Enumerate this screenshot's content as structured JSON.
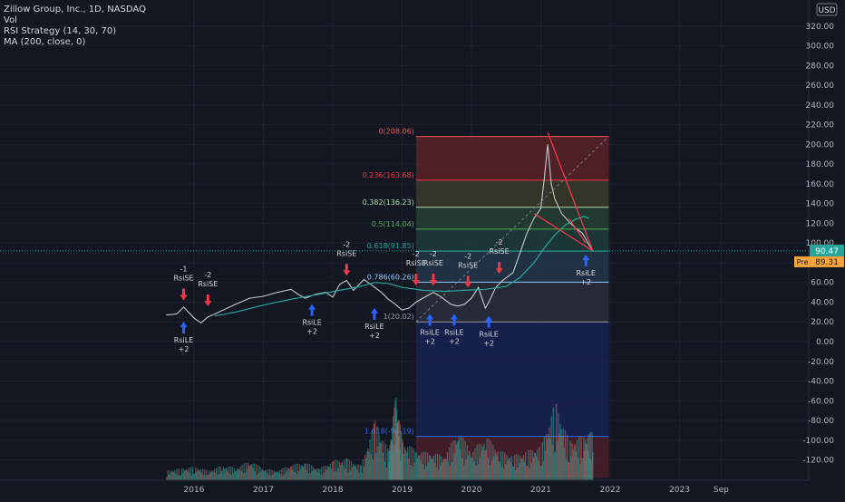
{
  "legend": {
    "symbol_line": "Zillow Group, Inc., 1D, NASDAQ",
    "indicators": [
      "Vol",
      "RSI Strategy (14, 30, 70)",
      "MA (200, close, 0)"
    ]
  },
  "currency_label": "USD",
  "price_tag": "90.47",
  "pre_tag_label": "Pre",
  "pre_tag_value": "89.31",
  "colors": {
    "background": "#131722",
    "price_line": "#c4c7ce",
    "ma_line": "#26a69a",
    "up": "#26a69a",
    "down": "#ef5350",
    "trendline": "#f23645",
    "buy_arrow": "#2962ff",
    "sell_arrow": "#f23645",
    "price_tag_bg": "#26a69a",
    "pre_tag_bg": "#f7a33a"
  },
  "chart_data": {
    "type": "line",
    "title": "Zillow Group, Inc., 1D, NASDAQ",
    "x_axis_ticks": [
      "2016",
      "2017",
      "2018",
      "2019",
      "2020",
      "2021",
      "2022",
      "2023",
      "Sep"
    ],
    "y_axis_ticks": [
      320,
      300,
      280,
      260,
      240,
      220,
      200,
      180,
      160,
      140,
      120,
      100,
      80,
      60,
      40,
      20,
      0,
      -20,
      -40,
      -60,
      -80,
      -100,
      -120
    ],
    "ylim": [
      -138,
      342
    ],
    "price_series": {
      "name": "ZG close",
      "x": [
        2015.6,
        2015.75,
        2015.85,
        2016.0,
        2016.1,
        2016.2,
        2016.3,
        2016.45,
        2016.6,
        2016.8,
        2017.0,
        2017.2,
        2017.4,
        2017.5,
        2017.6,
        2017.75,
        2017.9,
        2018.0,
        2018.1,
        2018.2,
        2018.3,
        2018.45,
        2018.55,
        2018.7,
        2018.8,
        2018.9,
        2019.0,
        2019.1,
        2019.2,
        2019.3,
        2019.45,
        2019.55,
        2019.7,
        2019.8,
        2019.9,
        2020.0,
        2020.1,
        2020.2,
        2020.25,
        2020.35,
        2020.45,
        2020.6,
        2020.7,
        2020.8,
        2020.9,
        2021.0,
        2021.05,
        2021.1,
        2021.15,
        2021.2,
        2021.3,
        2021.4,
        2021.5,
        2021.6,
        2021.68,
        2021.75
      ],
      "y": [
        27,
        28,
        35,
        24,
        19,
        25,
        28,
        33,
        38,
        44,
        46,
        50,
        53,
        48,
        44,
        48,
        50,
        45,
        58,
        62,
        52,
        63,
        58,
        50,
        43,
        38,
        32,
        34,
        40,
        44,
        50,
        46,
        38,
        36,
        38,
        44,
        55,
        34,
        40,
        55,
        62,
        70,
        90,
        110,
        125,
        135,
        165,
        200,
        160,
        145,
        130,
        122,
        115,
        110,
        100,
        92
      ]
    },
    "ma_series": {
      "name": "MA (200, close, 0)",
      "x": [
        2016.3,
        2016.6,
        2017.0,
        2017.4,
        2017.8,
        2018.1,
        2018.4,
        2018.6,
        2018.8,
        2019.0,
        2019.3,
        2019.6,
        2019.9,
        2020.2,
        2020.5,
        2020.7,
        2020.9,
        2021.05,
        2021.2,
        2021.35,
        2021.5,
        2021.62,
        2021.7
      ],
      "y": [
        26,
        30,
        37,
        43,
        48,
        52,
        56,
        60,
        59,
        55,
        52,
        51,
        52,
        53,
        56,
        65,
        80,
        95,
        108,
        118,
        124,
        127,
        125
      ]
    },
    "fibonacci": {
      "x_start": 2019.2,
      "x_end": 2021.98,
      "levels": [
        {
          "ratio": "0",
          "price": 208.06,
          "label": "0(208.06)",
          "color": "#ef5350",
          "zone": "#5a2226"
        },
        {
          "ratio": "0.236",
          "price": 163.68,
          "label": "0.236(163.68)",
          "color": "#f23645",
          "zone": "#3b3a2a"
        },
        {
          "ratio": "0.382",
          "price": 136.23,
          "label": "0.382(136.23)",
          "color": "#a5d6a7",
          "zone": "#244031"
        },
        {
          "ratio": "0.5",
          "price": 114.04,
          "label": "0.5(114.04)",
          "color": "#4caf50",
          "zone": "#1f3b3a"
        },
        {
          "ratio": "0.618",
          "price": 91.85,
          "label": "0.618(91.85)",
          "color": "#26a69a",
          "zone": "#24364a"
        },
        {
          "ratio": "0.786",
          "price": 60.26,
          "label": "0.786(60.26)",
          "color": "#90caf9",
          "zone": "#2a2e39"
        },
        {
          "ratio": "1",
          "price": 20.02,
          "label": "1(20.02)",
          "color": "#9598a1",
          "zone": "#172352"
        },
        {
          "ratio": "1.618",
          "price": -96.19,
          "label": "1.618(-96.19)",
          "color": "#2962ff",
          "zone": "#4a1f2a"
        }
      ],
      "zone_floor": -138
    },
    "trendlines": [
      {
        "from": [
          2021.1,
          212
        ],
        "to": [
          2021.75,
          92
        ]
      },
      {
        "from": [
          2020.9,
          130
        ],
        "to": [
          2021.75,
          92
        ]
      },
      {
        "from": [
          2021.4,
          125
        ],
        "to": [
          2021.65,
          100
        ]
      }
    ],
    "diagonal": {
      "from": [
        2019.2,
        20.02
      ],
      "to": [
        2021.98,
        208.06
      ]
    },
    "signals": [
      {
        "type": "sell",
        "x": 2015.85,
        "price": 40,
        "labels": [
          "-1",
          "RsiSE"
        ]
      },
      {
        "type": "sell",
        "x": 2016.2,
        "price": 34,
        "labels": [
          "-2",
          "RsiSE"
        ]
      },
      {
        "type": "buy",
        "x": 2015.85,
        "price": 22,
        "labels": [
          "RsiLE",
          "+2"
        ]
      },
      {
        "type": "buy",
        "x": 2017.7,
        "price": 40,
        "labels": [
          "RsiLE",
          "+2"
        ]
      },
      {
        "type": "sell",
        "x": 2018.2,
        "price": 65,
        "labels": [
          "-2",
          "RsiSE"
        ]
      },
      {
        "type": "buy",
        "x": 2018.6,
        "price": 36,
        "labels": [
          "RsiLE",
          "+2"
        ]
      },
      {
        "type": "sell",
        "x": 2019.2,
        "price": 55,
        "labels": [
          "-2",
          "RsiSE"
        ]
      },
      {
        "type": "sell",
        "x": 2019.45,
        "price": 55,
        "labels": [
          "-2",
          "RsiSE"
        ]
      },
      {
        "type": "buy",
        "x": 2019.4,
        "price": 30,
        "labels": [
          "RsiLE",
          "+2"
        ]
      },
      {
        "type": "buy",
        "x": 2019.75,
        "price": 30,
        "labels": [
          "RsiLE",
          "+2"
        ]
      },
      {
        "type": "sell",
        "x": 2019.95,
        "price": 53,
        "labels": [
          "-2",
          "RsiSE"
        ]
      },
      {
        "type": "buy",
        "x": 2020.25,
        "price": 28,
        "labels": [
          "RsiLE",
          "+2"
        ]
      },
      {
        "type": "sell",
        "x": 2020.4,
        "price": 67,
        "labels": [
          "-2",
          "RsiSE"
        ]
      },
      {
        "type": "buy",
        "x": 2021.65,
        "price": 90,
        "labels": [
          "RsiLE",
          "+2"
        ]
      }
    ],
    "volume": {
      "x": [
        2015.6,
        2015.8,
        2016.0,
        2016.2,
        2016.4,
        2016.6,
        2016.8,
        2017.0,
        2017.2,
        2017.4,
        2017.6,
        2017.8,
        2018.0,
        2018.2,
        2018.4,
        2018.6,
        2018.8,
        2018.9,
        2019.0,
        2019.2,
        2019.4,
        2019.6,
        2019.8,
        2020.0,
        2020.2,
        2020.4,
        2020.6,
        2020.8,
        2021.0,
        2021.2,
        2021.4,
        2021.6,
        2021.75
      ],
      "relative": [
        0.1,
        0.12,
        0.14,
        0.1,
        0.15,
        0.13,
        0.2,
        0.12,
        0.1,
        0.16,
        0.18,
        0.12,
        0.2,
        0.22,
        0.15,
        0.6,
        0.3,
        0.85,
        0.4,
        0.3,
        0.28,
        0.25,
        0.5,
        0.3,
        0.45,
        0.3,
        0.25,
        0.3,
        0.35,
        0.8,
        0.4,
        0.45,
        0.5
      ]
    }
  }
}
